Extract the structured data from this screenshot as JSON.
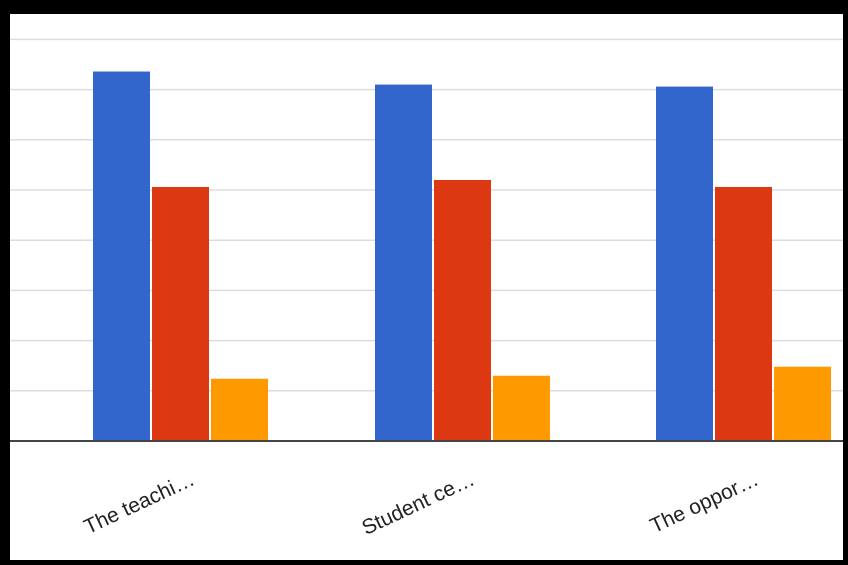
{
  "chart_data": {
    "type": "bar",
    "categories": [
      "The teachi…",
      "Student ce…",
      "The oppor…"
    ],
    "series": [
      {
        "values": [
          7.36,
          7.1,
          7.06
        ],
        "color": "#3366cc"
      },
      {
        "values": [
          5.06,
          5.2,
          5.06
        ],
        "color": "#dc3912"
      },
      {
        "values": [
          1.24,
          1.3,
          1.48
        ],
        "color": "#ff9900"
      }
    ],
    "ylim": [
      0,
      8
    ],
    "grid": true,
    "legend": "none"
  },
  "colors": {
    "background": "#ffffff",
    "frame": "#000000",
    "gridline": "#dddddd",
    "baseline": "#444444"
  }
}
